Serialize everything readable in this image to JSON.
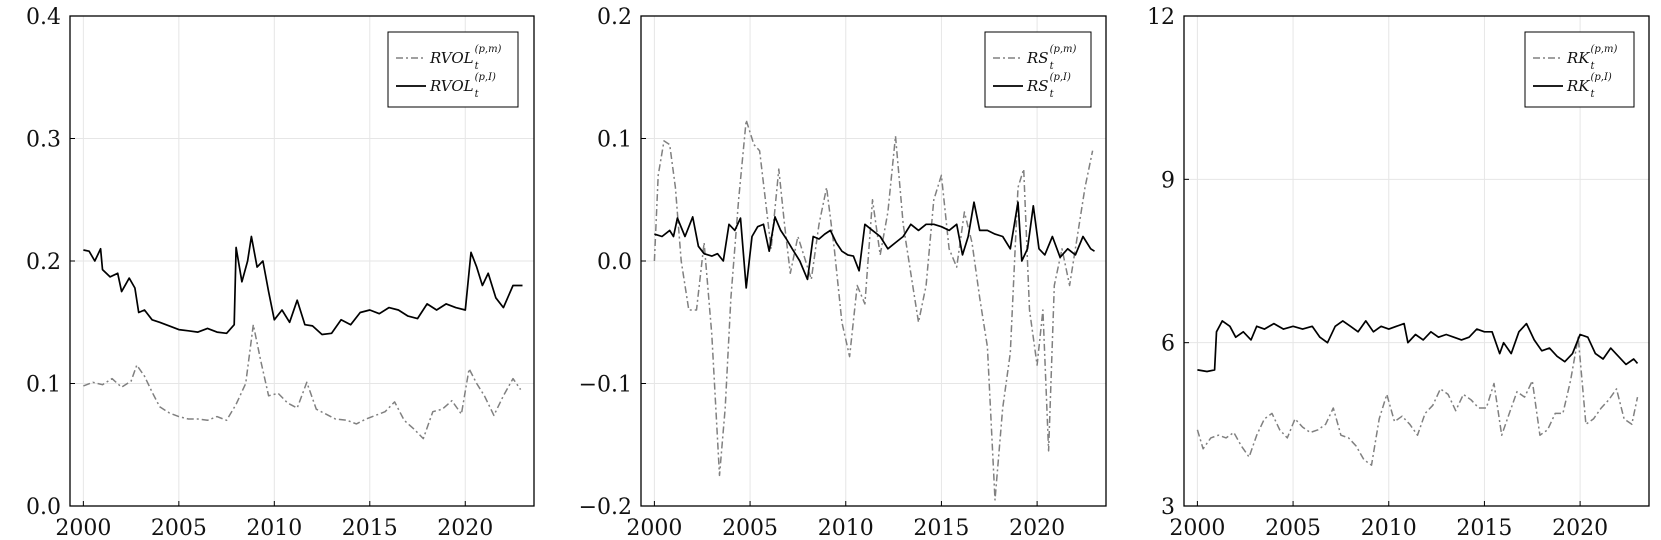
{
  "chart_data": [
    {
      "type": "line",
      "title": "",
      "xlabel": "",
      "ylabel": "",
      "xlim": [
        1999.3,
        2023.6
      ],
      "ylim": [
        0.0,
        0.4
      ],
      "xticks": [
        2000,
        2005,
        2010,
        2015,
        2020
      ],
      "xtick_labels": [
        "2000",
        "2005",
        "2010",
        "2015",
        "2020"
      ],
      "yticks": [
        0.0,
        0.1,
        0.2,
        0.3,
        0.4
      ],
      "ytick_labels": [
        "0.0",
        "0.1",
        "0.2",
        "0.3",
        "0.4"
      ],
      "grid": true,
      "legend_position": "top-right",
      "series": [
        {
          "name": "RVOL_t^{(p,m)}",
          "label_base": "RVOL",
          "label_sub": "t",
          "label_sup": "(p,m)",
          "style": "dashdot",
          "color": "#808080",
          "x": [
            2000.0,
            2000.5,
            2001.0,
            2001.5,
            2002.0,
            2002.5,
            2002.8,
            2003.2,
            2003.6,
            2004.0,
            2004.5,
            2005.0,
            2005.5,
            2006.0,
            2006.5,
            2007.0,
            2007.5,
            2008.0,
            2008.5,
            2008.9,
            2009.3,
            2009.7,
            2010.2,
            2010.7,
            2011.2,
            2011.7,
            2012.2,
            2012.7,
            2013.2,
            2013.8,
            2014.3,
            2014.8,
            2015.3,
            2015.8,
            2016.3,
            2016.8,
            2017.3,
            2017.8,
            2018.3,
            2018.8,
            2019.3,
            2019.8,
            2020.2,
            2020.6,
            2021.0,
            2021.5,
            2022.0,
            2022.5,
            2022.9
          ],
          "values": [
            0.098,
            0.101,
            0.099,
            0.104,
            0.097,
            0.102,
            0.115,
            0.106,
            0.093,
            0.081,
            0.076,
            0.073,
            0.071,
            0.071,
            0.07,
            0.073,
            0.07,
            0.083,
            0.1,
            0.148,
            0.118,
            0.09,
            0.092,
            0.084,
            0.08,
            0.101,
            0.079,
            0.075,
            0.071,
            0.07,
            0.067,
            0.071,
            0.074,
            0.077,
            0.085,
            0.07,
            0.063,
            0.055,
            0.077,
            0.079,
            0.086,
            0.075,
            0.112,
            0.1,
            0.09,
            0.074,
            0.09,
            0.104,
            0.095
          ]
        },
        {
          "name": "RVOL_t^{(p,I)}",
          "label_base": "RVOL",
          "label_sub": "t",
          "label_sup": "(p,I)",
          "style": "solid",
          "color": "#000000",
          "x": [
            2000.0,
            2000.3,
            2000.6,
            2000.9,
            2001.0,
            2001.4,
            2001.8,
            2002.0,
            2002.4,
            2002.7,
            2002.9,
            2003.2,
            2003.6,
            2004.0,
            2004.5,
            2005.0,
            2005.5,
            2006.0,
            2006.5,
            2007.0,
            2007.5,
            2007.9,
            2008.0,
            2008.3,
            2008.6,
            2008.8,
            2009.1,
            2009.4,
            2009.7,
            2010.0,
            2010.4,
            2010.8,
            2011.2,
            2011.6,
            2012.0,
            2012.5,
            2013.0,
            2013.5,
            2014.0,
            2014.5,
            2015.0,
            2015.5,
            2016.0,
            2016.5,
            2017.0,
            2017.5,
            2018.0,
            2018.5,
            2019.0,
            2019.5,
            2020.0,
            2020.3,
            2020.6,
            2020.9,
            2021.2,
            2021.6,
            2022.0,
            2022.5,
            2023.0
          ],
          "values": [
            0.209,
            0.208,
            0.2,
            0.21,
            0.193,
            0.187,
            0.19,
            0.175,
            0.186,
            0.178,
            0.158,
            0.16,
            0.152,
            0.15,
            0.147,
            0.144,
            0.143,
            0.142,
            0.145,
            0.142,
            0.141,
            0.148,
            0.211,
            0.183,
            0.2,
            0.22,
            0.195,
            0.2,
            0.175,
            0.152,
            0.16,
            0.15,
            0.168,
            0.148,
            0.147,
            0.14,
            0.141,
            0.152,
            0.148,
            0.158,
            0.16,
            0.157,
            0.162,
            0.16,
            0.155,
            0.153,
            0.165,
            0.16,
            0.165,
            0.162,
            0.16,
            0.207,
            0.195,
            0.18,
            0.19,
            0.17,
            0.162,
            0.18,
            0.18
          ]
        }
      ]
    },
    {
      "type": "line",
      "title": "",
      "xlabel": "",
      "ylabel": "",
      "xlim": [
        1999.3,
        2023.6
      ],
      "ylim": [
        -0.2,
        0.2
      ],
      "xticks": [
        2000,
        2005,
        2010,
        2015,
        2020
      ],
      "xtick_labels": [
        "2000",
        "2005",
        "2010",
        "2015",
        "2020"
      ],
      "yticks": [
        -0.2,
        -0.1,
        0.0,
        0.1,
        0.2
      ],
      "ytick_labels": [
        "−0.2",
        "−0.1",
        "0.0",
        "0.1",
        "0.2"
      ],
      "grid": true,
      "legend_position": "top-right",
      "series": [
        {
          "name": "RS_t^{(p,m)}",
          "label_base": "RS",
          "label_sub": "t",
          "label_sup": "(p,m)",
          "style": "dashdot",
          "color": "#808080",
          "x": [
            2000.0,
            2000.2,
            2000.5,
            2000.8,
            2001.1,
            2001.4,
            2001.8,
            2002.2,
            2002.6,
            2003.0,
            2003.4,
            2003.7,
            2004.0,
            2004.4,
            2004.8,
            2005.2,
            2005.5,
            2005.8,
            2006.1,
            2006.5,
            2006.8,
            2007.1,
            2007.5,
            2007.9,
            2008.2,
            2008.6,
            2009.0,
            2009.4,
            2009.8,
            2010.2,
            2010.6,
            2011.0,
            2011.4,
            2011.8,
            2012.2,
            2012.6,
            2013.0,
            2013.4,
            2013.8,
            2014.2,
            2014.6,
            2015.0,
            2015.4,
            2015.8,
            2016.2,
            2016.6,
            2017.0,
            2017.4,
            2017.8,
            2018.2,
            2018.6,
            2019.0,
            2019.3,
            2019.6,
            2020.0,
            2020.3,
            2020.6,
            2020.9,
            2021.3,
            2021.7,
            2022.1,
            2022.5,
            2022.9
          ],
          "values": [
            0.0,
            0.07,
            0.098,
            0.095,
            0.06,
            0.0,
            -0.04,
            -0.04,
            0.015,
            -0.06,
            -0.175,
            -0.12,
            -0.03,
            0.05,
            0.115,
            0.095,
            0.09,
            0.05,
            0.01,
            0.075,
            0.03,
            -0.01,
            0.02,
            0.0,
            -0.015,
            0.03,
            0.06,
            0.01,
            -0.05,
            -0.078,
            -0.02,
            -0.035,
            0.05,
            0.005,
            0.04,
            0.102,
            0.03,
            -0.01,
            -0.05,
            -0.02,
            0.05,
            0.07,
            0.01,
            -0.005,
            0.04,
            0.015,
            -0.03,
            -0.07,
            -0.195,
            -0.12,
            -0.075,
            0.06,
            0.075,
            -0.04,
            -0.085,
            -0.04,
            -0.155,
            -0.02,
            0.01,
            -0.02,
            0.02,
            0.06,
            0.09
          ]
        },
        {
          "name": "RS_t^{(p,I)}",
          "label_base": "RS",
          "label_sub": "t",
          "label_sup": "(p,I)",
          "style": "solid",
          "color": "#000000",
          "x": [
            2000.0,
            2000.4,
            2000.8,
            2001.0,
            2001.2,
            2001.6,
            2002.0,
            2002.3,
            2002.6,
            2003.0,
            2003.3,
            2003.6,
            2003.9,
            2004.2,
            2004.5,
            2004.8,
            2005.1,
            2005.4,
            2005.7,
            2006.0,
            2006.3,
            2006.6,
            2006.9,
            2007.2,
            2007.6,
            2008.0,
            2008.3,
            2008.6,
            2008.9,
            2009.2,
            2009.5,
            2009.8,
            2010.1,
            2010.4,
            2010.7,
            2011.0,
            2011.4,
            2011.8,
            2012.2,
            2012.6,
            2013.0,
            2013.4,
            2013.8,
            2014.2,
            2014.6,
            2015.0,
            2015.4,
            2015.8,
            2016.1,
            2016.4,
            2016.7,
            2017.0,
            2017.4,
            2017.8,
            2018.2,
            2018.6,
            2019.0,
            2019.2,
            2019.5,
            2019.8,
            2020.1,
            2020.4,
            2020.8,
            2021.2,
            2021.6,
            2022.0,
            2022.4,
            2022.8,
            2023.0
          ],
          "values": [
            0.022,
            0.02,
            0.025,
            0.02,
            0.035,
            0.02,
            0.036,
            0.012,
            0.006,
            0.004,
            0.006,
            0.0,
            0.03,
            0.025,
            0.035,
            -0.022,
            0.02,
            0.028,
            0.03,
            0.008,
            0.036,
            0.025,
            0.018,
            0.01,
            0.0,
            -0.015,
            0.02,
            0.018,
            0.022,
            0.025,
            0.015,
            0.008,
            0.005,
            0.004,
            -0.008,
            0.03,
            0.025,
            0.02,
            0.01,
            0.015,
            0.02,
            0.03,
            0.025,
            0.03,
            0.03,
            0.028,
            0.025,
            0.03,
            0.005,
            0.02,
            0.048,
            0.025,
            0.025,
            0.022,
            0.02,
            0.01,
            0.048,
            0.0,
            0.01,
            0.045,
            0.01,
            0.005,
            0.02,
            0.003,
            0.01,
            0.005,
            0.02,
            0.01,
            0.008
          ]
        }
      ]
    },
    {
      "type": "line",
      "title": "",
      "xlabel": "",
      "ylabel": "",
      "xlim": [
        1999.3,
        2023.6
      ],
      "ylim": [
        3,
        12
      ],
      "xticks": [
        2000,
        2005,
        2010,
        2015,
        2020
      ],
      "xtick_labels": [
        "2000",
        "2005",
        "2010",
        "2015",
        "2020"
      ],
      "yticks": [
        3,
        6,
        9,
        12
      ],
      "ytick_labels": [
        "3",
        "6",
        "9",
        "12"
      ],
      "grid": true,
      "legend_position": "top-right",
      "series": [
        {
          "name": "RK_t^{(p,m)}",
          "label_base": "RK",
          "label_sub": "t",
          "label_sup": "(p,m)",
          "style": "dashdot",
          "color": "#808080",
          "x": [
            2000.0,
            2000.3,
            2000.7,
            2001.1,
            2001.5,
            2001.9,
            2002.3,
            2002.7,
            2003.1,
            2003.5,
            2003.9,
            2004.3,
            2004.7,
            2005.1,
            2005.5,
            2005.9,
            2006.3,
            2006.7,
            2007.1,
            2007.5,
            2007.9,
            2008.3,
            2008.7,
            2009.1,
            2009.5,
            2009.9,
            2010.3,
            2010.7,
            2011.1,
            2011.5,
            2011.9,
            2012.3,
            2012.7,
            2013.1,
            2013.5,
            2013.9,
            2014.3,
            2014.7,
            2015.1,
            2015.5,
            2015.9,
            2016.3,
            2016.7,
            2017.1,
            2017.5,
            2017.9,
            2018.3,
            2018.7,
            2019.1,
            2019.5,
            2019.9,
            2020.3,
            2020.7,
            2021.1,
            2021.5,
            2021.9,
            2022.3,
            2022.7,
            2023.0
          ],
          "values": [
            4.4,
            4.05,
            4.25,
            4.3,
            4.25,
            4.35,
            4.1,
            3.9,
            4.3,
            4.6,
            4.7,
            4.4,
            4.25,
            4.6,
            4.45,
            4.35,
            4.4,
            4.5,
            4.8,
            4.3,
            4.25,
            4.1,
            3.85,
            3.75,
            4.6,
            5.05,
            4.55,
            4.65,
            4.5,
            4.3,
            4.7,
            4.85,
            5.15,
            5.05,
            4.75,
            5.05,
            4.95,
            4.8,
            4.8,
            5.25,
            4.3,
            4.7,
            5.1,
            5.0,
            5.3,
            4.3,
            4.4,
            4.7,
            4.7,
            5.3,
            6.1,
            4.5,
            4.6,
            4.8,
            4.95,
            5.15,
            4.6,
            4.5,
            5.0
          ]
        },
        {
          "name": "RK_t^{(p,I)}",
          "label_base": "RK",
          "label_sub": "t",
          "label_sup": "(p,I)",
          "style": "solid",
          "color": "#000000",
          "x": [
            2000.0,
            2000.5,
            2000.9,
            2001.0,
            2001.3,
            2001.7,
            2002.0,
            2002.4,
            2002.8,
            2003.1,
            2003.5,
            2004.0,
            2004.5,
            2005.0,
            2005.5,
            2006.0,
            2006.4,
            2006.8,
            2007.2,
            2007.6,
            2008.0,
            2008.4,
            2008.8,
            2009.2,
            2009.6,
            2010.0,
            2010.4,
            2010.8,
            2011.0,
            2011.4,
            2011.8,
            2012.2,
            2012.6,
            2013.0,
            2013.4,
            2013.8,
            2014.2,
            2014.6,
            2015.0,
            2015.4,
            2015.8,
            2016.0,
            2016.4,
            2016.8,
            2017.2,
            2017.6,
            2018.0,
            2018.4,
            2018.8,
            2019.2,
            2019.6,
            2020.0,
            2020.4,
            2020.8,
            2021.2,
            2021.6,
            2022.0,
            2022.4,
            2022.8,
            2023.0
          ],
          "values": [
            5.5,
            5.47,
            5.5,
            6.2,
            6.4,
            6.3,
            6.1,
            6.2,
            6.05,
            6.3,
            6.25,
            6.35,
            6.25,
            6.3,
            6.25,
            6.3,
            6.1,
            6.0,
            6.3,
            6.4,
            6.3,
            6.2,
            6.4,
            6.2,
            6.3,
            6.25,
            6.3,
            6.35,
            6.0,
            6.15,
            6.05,
            6.2,
            6.1,
            6.15,
            6.1,
            6.05,
            6.1,
            6.25,
            6.2,
            6.2,
            5.8,
            6.0,
            5.8,
            6.2,
            6.35,
            6.05,
            5.85,
            5.9,
            5.75,
            5.65,
            5.8,
            6.15,
            6.1,
            5.8,
            5.7,
            5.9,
            5.75,
            5.6,
            5.7,
            5.62
          ]
        }
      ]
    }
  ]
}
